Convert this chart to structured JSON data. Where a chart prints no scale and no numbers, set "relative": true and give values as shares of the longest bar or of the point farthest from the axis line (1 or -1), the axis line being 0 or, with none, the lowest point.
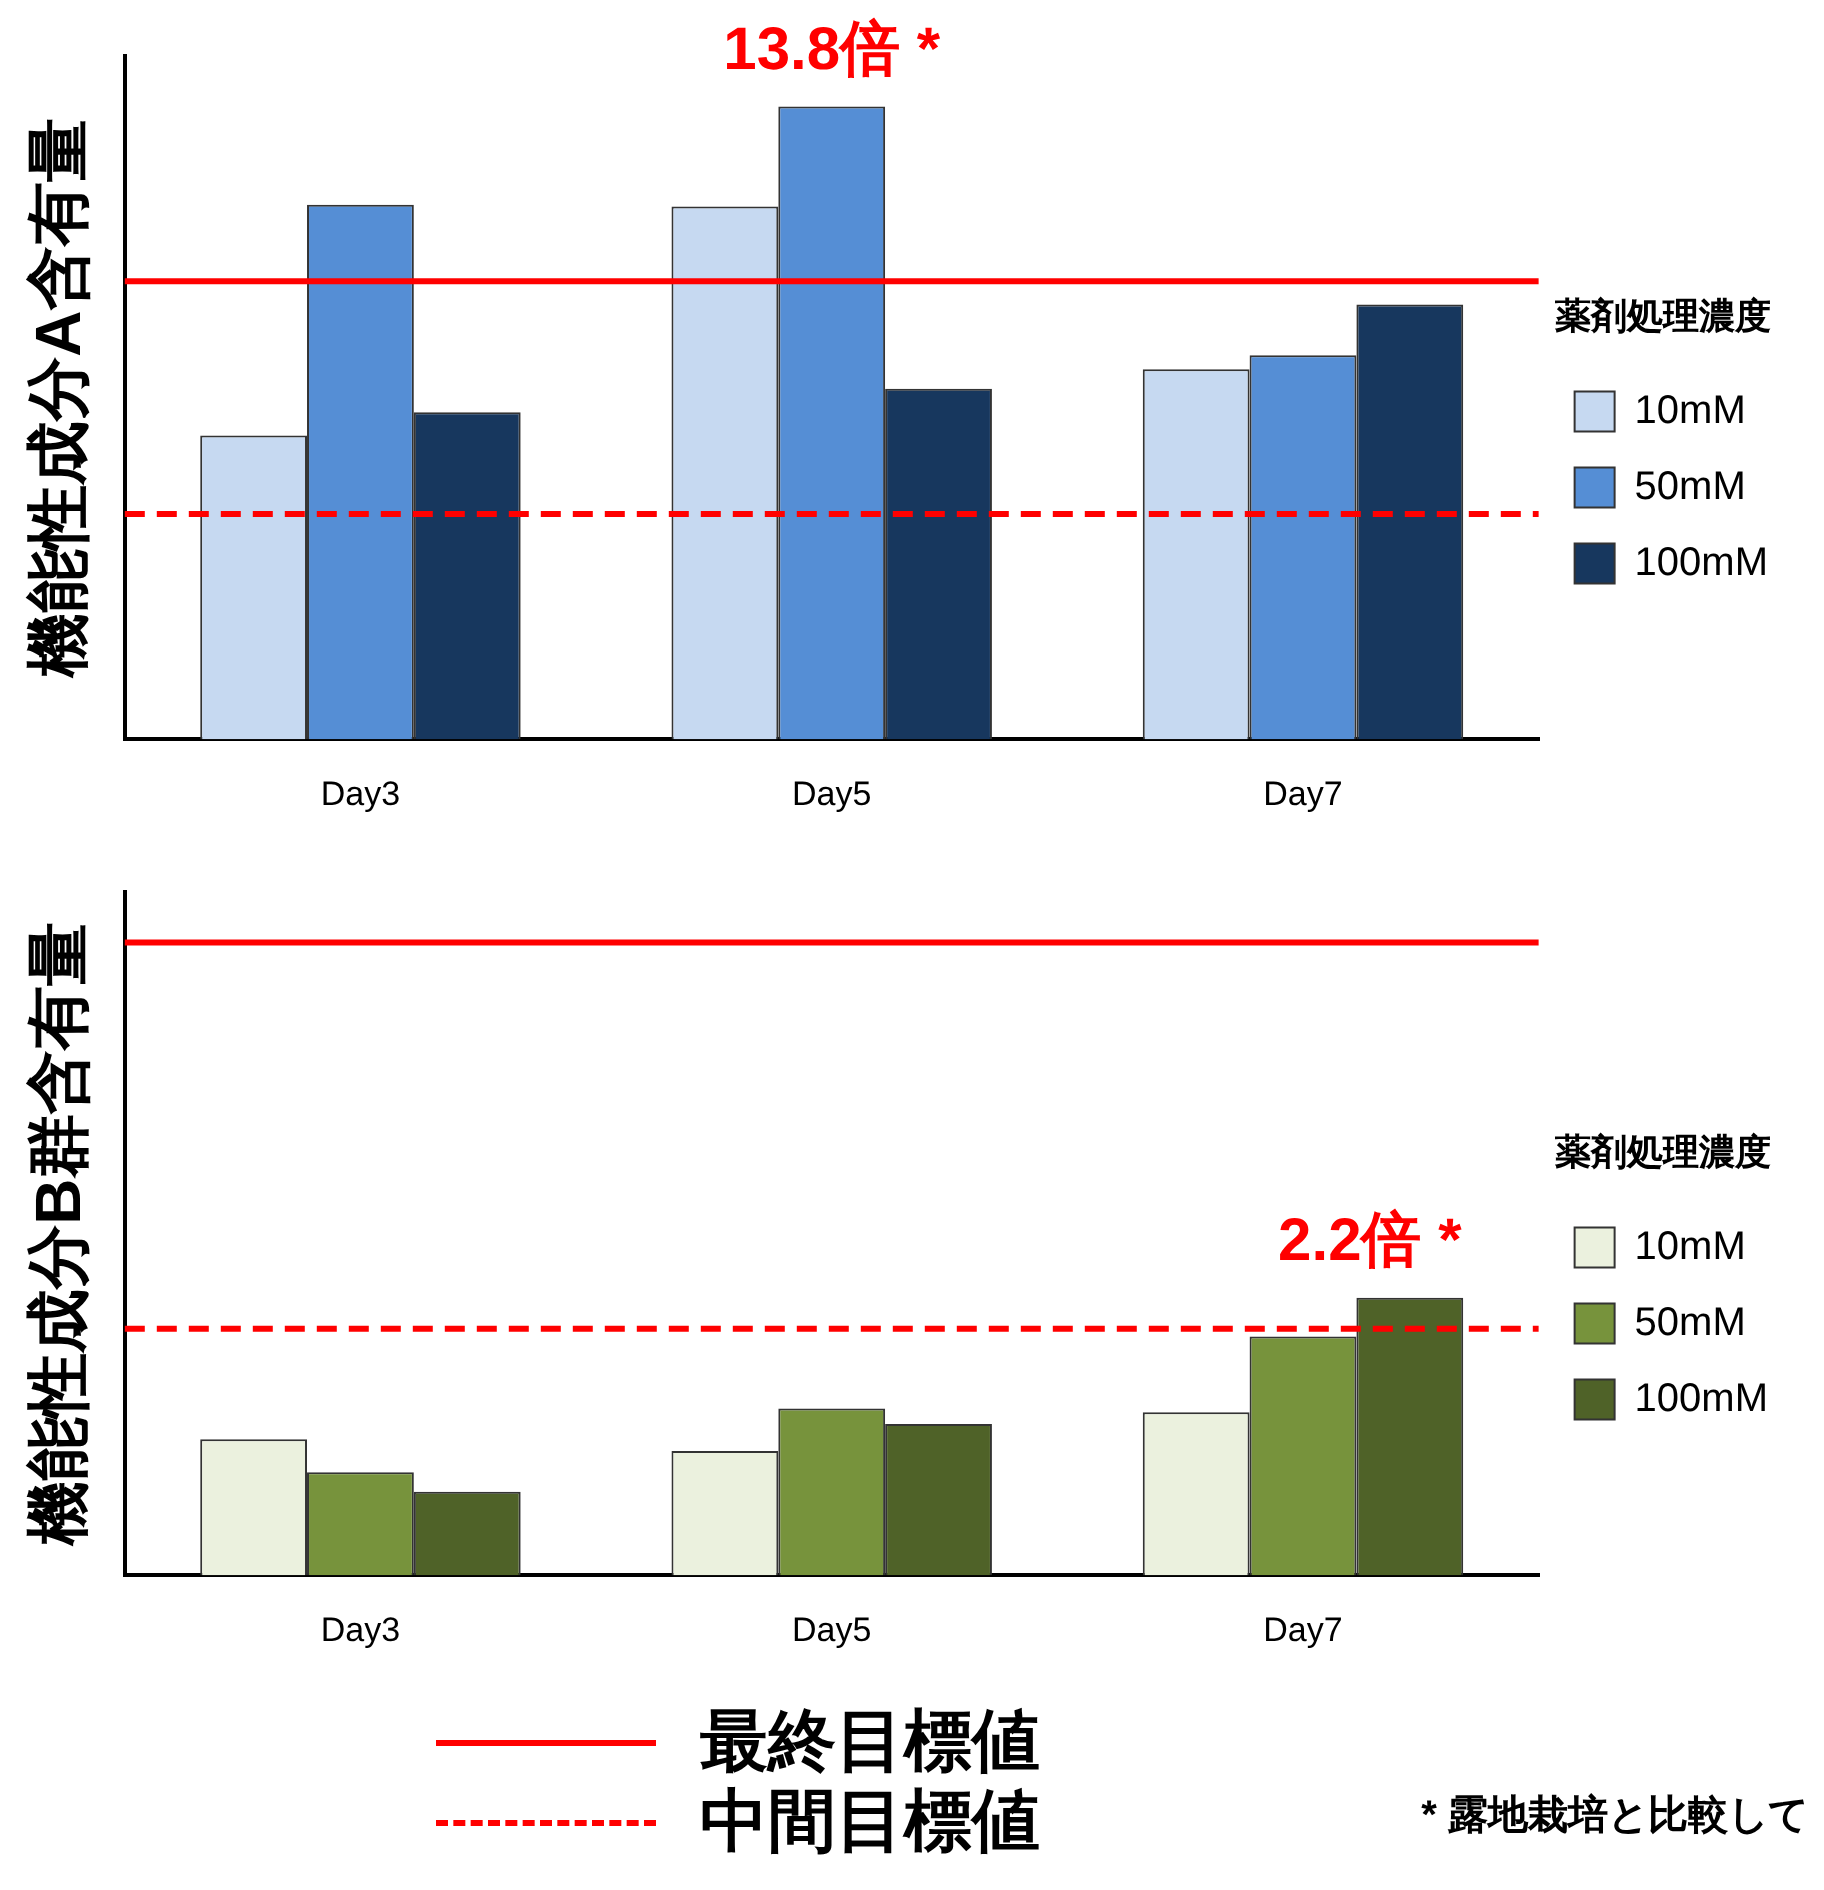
{
  "chart_data": [
    {
      "type": "bar",
      "ylabel": "機能性成分A含有量",
      "categories": [
        "Day3",
        "Day5",
        "Day7"
      ],
      "relative": true,
      "legend": "right",
      "legend_title": "薬剤処理濃度",
      "grid": false,
      "series": [
        {
          "name": "10mM",
          "color": "#c6d9f1",
          "values": [
            0.48,
            0.842,
            0.585
          ]
        },
        {
          "name": "50mM",
          "color": "#558ed5",
          "values": [
            0.845,
            1,
            0.607
          ]
        },
        {
          "name": "100mM",
          "color": "#17375e",
          "values": [
            0.517,
            0.554,
            0.687
          ]
        }
      ],
      "ref_lines": [
        {
          "axis": "y",
          "value": 0.724,
          "label": "最終目標値",
          "color": "#ff0000",
          "line_style": "solid"
        },
        {
          "axis": "y",
          "value": 0.356,
          "label": "中間目標値",
          "color": "#ff0000",
          "line_style": "dashed"
        }
      ],
      "annotations": [
        {
          "text": "13.8倍 *",
          "x": "Day5",
          "y": 1
        }
      ]
    },
    {
      "type": "bar",
      "ylabel": "機能性成分B群含有量",
      "categories": [
        "Day3",
        "Day5",
        "Day7"
      ],
      "relative": true,
      "legend": "right",
      "legend_title": "薬剤処理濃度",
      "grid": false,
      "series": [
        {
          "name": "10mM",
          "color": "#ebf1de",
          "values": [
            0.49,
            0.448,
            0.587
          ]
        },
        {
          "name": "50mM",
          "color": "#77933c",
          "values": [
            0.371,
            0.601,
            0.86
          ]
        },
        {
          "name": "100mM",
          "color": "#4f6228",
          "values": [
            0.301,
            0.545,
            1
          ]
        }
      ],
      "ref_lines": [
        {
          "axis": "y",
          "value": 2.28,
          "color": "#ff0000",
          "line_style": "solid"
        },
        {
          "axis": "y",
          "value": 0.888,
          "color": "#ff0000",
          "line_style": "dashed"
        }
      ],
      "annotations": [
        "2.2倍 *",
        "* 露地栽培と比較して"
      ]
    }
  ]
}
